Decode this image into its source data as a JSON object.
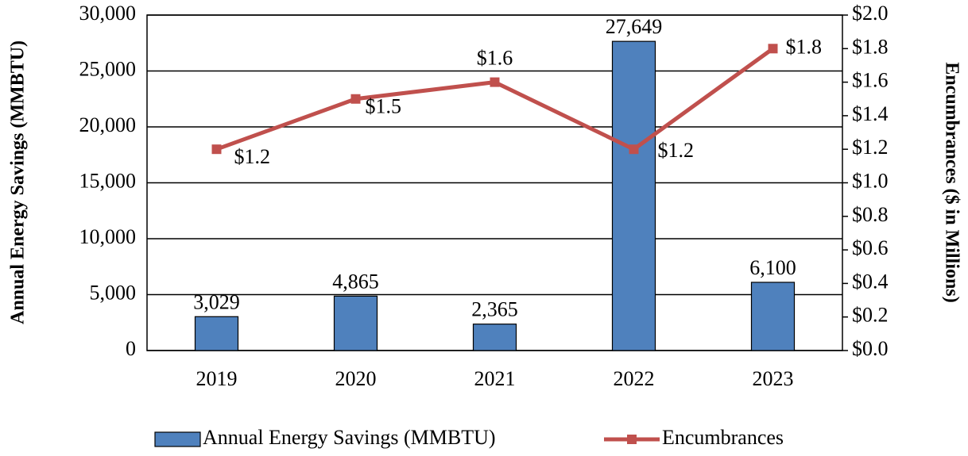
{
  "chart_data": {
    "type": "bar",
    "categories": [
      "2019",
      "2020",
      "2021",
      "2022",
      "2023"
    ],
    "series": [
      {
        "name": "Annual Energy Savings (MMBTU)",
        "type": "bar",
        "color": "#4f81bd",
        "values": [
          3029,
          4865,
          2365,
          27649,
          6100
        ],
        "value_labels": [
          "3,029",
          "4,865",
          "2,365",
          "27,649",
          "6,100"
        ]
      },
      {
        "name": "Encumbrances",
        "type": "line",
        "axis": "y2",
        "color": "#c0504d",
        "values": [
          1.2,
          1.5,
          1.6,
          1.2,
          1.8
        ],
        "value_labels": [
          "$1.2",
          "$1.5",
          "$1.6",
          "$1.2",
          "$1.8"
        ]
      }
    ],
    "ylabel": "Annual Energy Savings (MMBTU)",
    "y2label": "Encumbrances ($ in Millions)",
    "ylim": [
      0,
      30000
    ],
    "yticks": [
      0,
      {
        "value": 5000,
        "label": "5,000"
      },
      {
        "value": 10000,
        "label": "10,000"
      },
      {
        "value": 15000,
        "label": "15,000"
      },
      {
        "value": 20000,
        "label": "20,000"
      },
      {
        "value": 25000,
        "label": "25,000"
      },
      {
        "value": 30000,
        "label": "30,000"
      }
    ],
    "y2lim": [
      0,
      2.0
    ],
    "y2ticks": [
      {
        "value": 0,
        "label": "$0.0"
      },
      {
        "value": 0.2,
        "label": "$0.2"
      },
      {
        "value": 0.4,
        "label": "$0.4"
      },
      {
        "value": 0.6,
        "label": "$0.6"
      },
      {
        "value": 0.8,
        "label": "$0.8"
      },
      {
        "value": 1.0,
        "label": "$1.0"
      },
      {
        "value": 1.2,
        "label": "$1.2"
      },
      {
        "value": 1.4,
        "label": "$1.4"
      },
      {
        "value": 1.6,
        "label": "$1.6"
      },
      {
        "value": 1.8,
        "label": "$1.8"
      },
      {
        "value": 2.0,
        "label": "$2.0"
      }
    ],
    "grid": true,
    "legend": "bottom"
  }
}
